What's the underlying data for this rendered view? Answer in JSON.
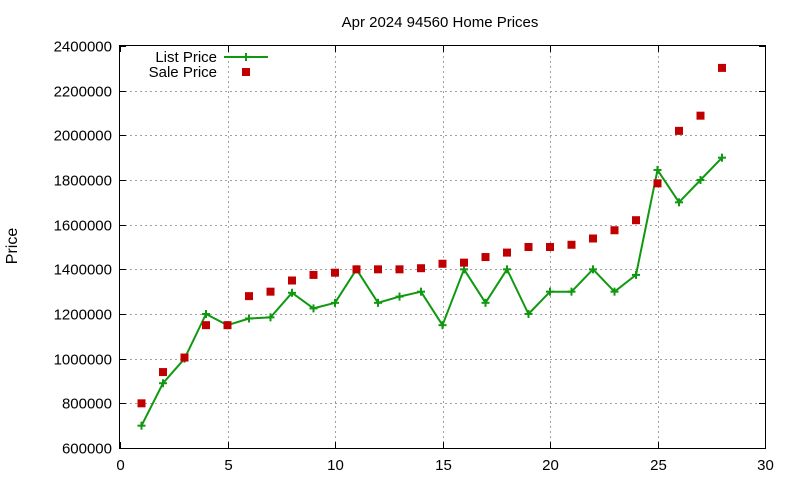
{
  "chart_data": {
    "type": "line",
    "title": "Apr 2024 94560 Home Prices",
    "xlabel": "",
    "ylabel": "Price",
    "xlim": [
      0,
      30
    ],
    "ylim": [
      600000,
      2400000
    ],
    "xticks": [
      0,
      5,
      10,
      15,
      20,
      25,
      30
    ],
    "yticks": [
      600000,
      800000,
      1000000,
      1200000,
      1400000,
      1600000,
      1800000,
      2000000,
      2200000,
      2400000
    ],
    "grid": true,
    "legend_position": "top-left",
    "series": [
      {
        "name": "List Price",
        "style": "linespoints",
        "marker": "plus",
        "color": "#109910",
        "x": [
          1,
          2,
          3,
          4,
          5,
          6,
          7,
          8,
          9,
          10,
          11,
          12,
          13,
          14,
          15,
          16,
          17,
          18,
          19,
          20,
          21,
          22,
          23,
          24,
          25,
          26,
          27,
          28
        ],
        "y": [
          700000,
          890000,
          1000000,
          1200000,
          1150000,
          1180000,
          1185000,
          1295000,
          1225000,
          1250000,
          1400000,
          1250000,
          1278000,
          1300000,
          1150000,
          1400000,
          1250000,
          1400000,
          1200000,
          1300000,
          1300000,
          1400000,
          1300000,
          1375000,
          1845000,
          1700000,
          1800000,
          1900000
        ]
      },
      {
        "name": "Sale Price",
        "style": "points",
        "marker": "square",
        "color": "#c00000",
        "x": [
          1,
          2,
          3,
          4,
          5,
          6,
          7,
          8,
          9,
          10,
          11,
          12,
          13,
          14,
          15,
          16,
          17,
          18,
          19,
          20,
          21,
          22,
          23,
          24,
          25,
          26,
          27,
          28
        ],
        "y": [
          800000,
          940000,
          1005000,
          1150000,
          1150000,
          1280000,
          1300000,
          1350000,
          1375000,
          1385000,
          1400000,
          1400000,
          1400000,
          1405000,
          1425000,
          1430000,
          1455000,
          1475000,
          1500000,
          1500000,
          1510000,
          1538000,
          1575000,
          1620000,
          1785000,
          2020000,
          2088000,
          2302000
        ]
      }
    ]
  }
}
